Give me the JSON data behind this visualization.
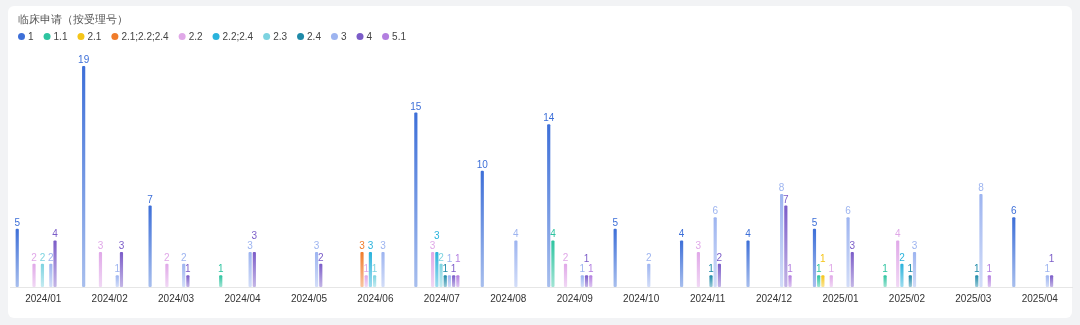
{
  "chart_data": {
    "type": "bar",
    "title": "临床申请（按受理号）",
    "categories": [
      "2024/01",
      "2024/02",
      "2024/03",
      "2024/04",
      "2024/05",
      "2024/06",
      "2024/07",
      "2024/08",
      "2024/09",
      "2024/10",
      "2024/11",
      "2024/12",
      "2025/01",
      "2025/02",
      "2025/03",
      "2025/04"
    ],
    "data_labels": true,
    "legend": "top left",
    "series": [
      {
        "name": "1",
        "color": "#3d6fd8",
        "values": [
          5,
          19,
          7,
          null,
          null,
          null,
          15,
          10,
          14,
          5,
          4,
          4,
          5,
          null,
          null,
          6
        ]
      },
      {
        "name": "1.1",
        "color": "#2ec4a0",
        "values": [
          null,
          null,
          null,
          1,
          null,
          null,
          null,
          null,
          4,
          null,
          null,
          null,
          1,
          1,
          null,
          null
        ]
      },
      {
        "name": "2.1",
        "color": "#f5c518",
        "values": [
          null,
          null,
          null,
          null,
          null,
          null,
          null,
          null,
          null,
          null,
          null,
          null,
          1,
          null,
          null,
          null
        ]
      },
      {
        "name": "2.1;2.2;2.4",
        "color": "#f07c2a",
        "values": [
          null,
          null,
          null,
          null,
          null,
          3,
          null,
          null,
          null,
          null,
          null,
          null,
          null,
          null,
          null,
          null
        ]
      },
      {
        "name": "2.2",
        "color": "#e0a8e8",
        "values": [
          2,
          3,
          2,
          null,
          null,
          1,
          3,
          null,
          2,
          null,
          3,
          null,
          1,
          4,
          null,
          null
        ]
      },
      {
        "name": "2.2;2.4",
        "color": "#2ab3dc",
        "values": [
          null,
          null,
          null,
          null,
          null,
          3,
          3,
          null,
          null,
          null,
          null,
          null,
          null,
          2,
          null,
          null
        ]
      },
      {
        "name": "2.3",
        "color": "#7dd3e0",
        "values": [
          2,
          null,
          null,
          null,
          null,
          1,
          2,
          null,
          null,
          null,
          null,
          null,
          null,
          null,
          null,
          null
        ]
      },
      {
        "name": "2.4",
        "color": "#1f8aa8",
        "values": [
          null,
          null,
          null,
          null,
          null,
          null,
          1,
          null,
          null,
          null,
          1,
          null,
          null,
          1,
          1,
          null
        ]
      },
      {
        "name": "3",
        "color": "#9db4f0",
        "values": [
          2,
          1,
          2,
          3,
          3,
          3,
          1,
          4,
          1,
          2,
          6,
          8,
          6,
          3,
          8,
          1
        ]
      },
      {
        "name": "4",
        "color": "#7b5cc8",
        "values": [
          4,
          3,
          1,
          3,
          2,
          null,
          1,
          null,
          1,
          null,
          2,
          7,
          3,
          null,
          null,
          1
        ]
      },
      {
        "name": "5.1",
        "color": "#b37fe0",
        "values": [
          null,
          null,
          null,
          null,
          null,
          null,
          1,
          null,
          1,
          null,
          null,
          1,
          null,
          null,
          1,
          null
        ]
      }
    ]
  }
}
